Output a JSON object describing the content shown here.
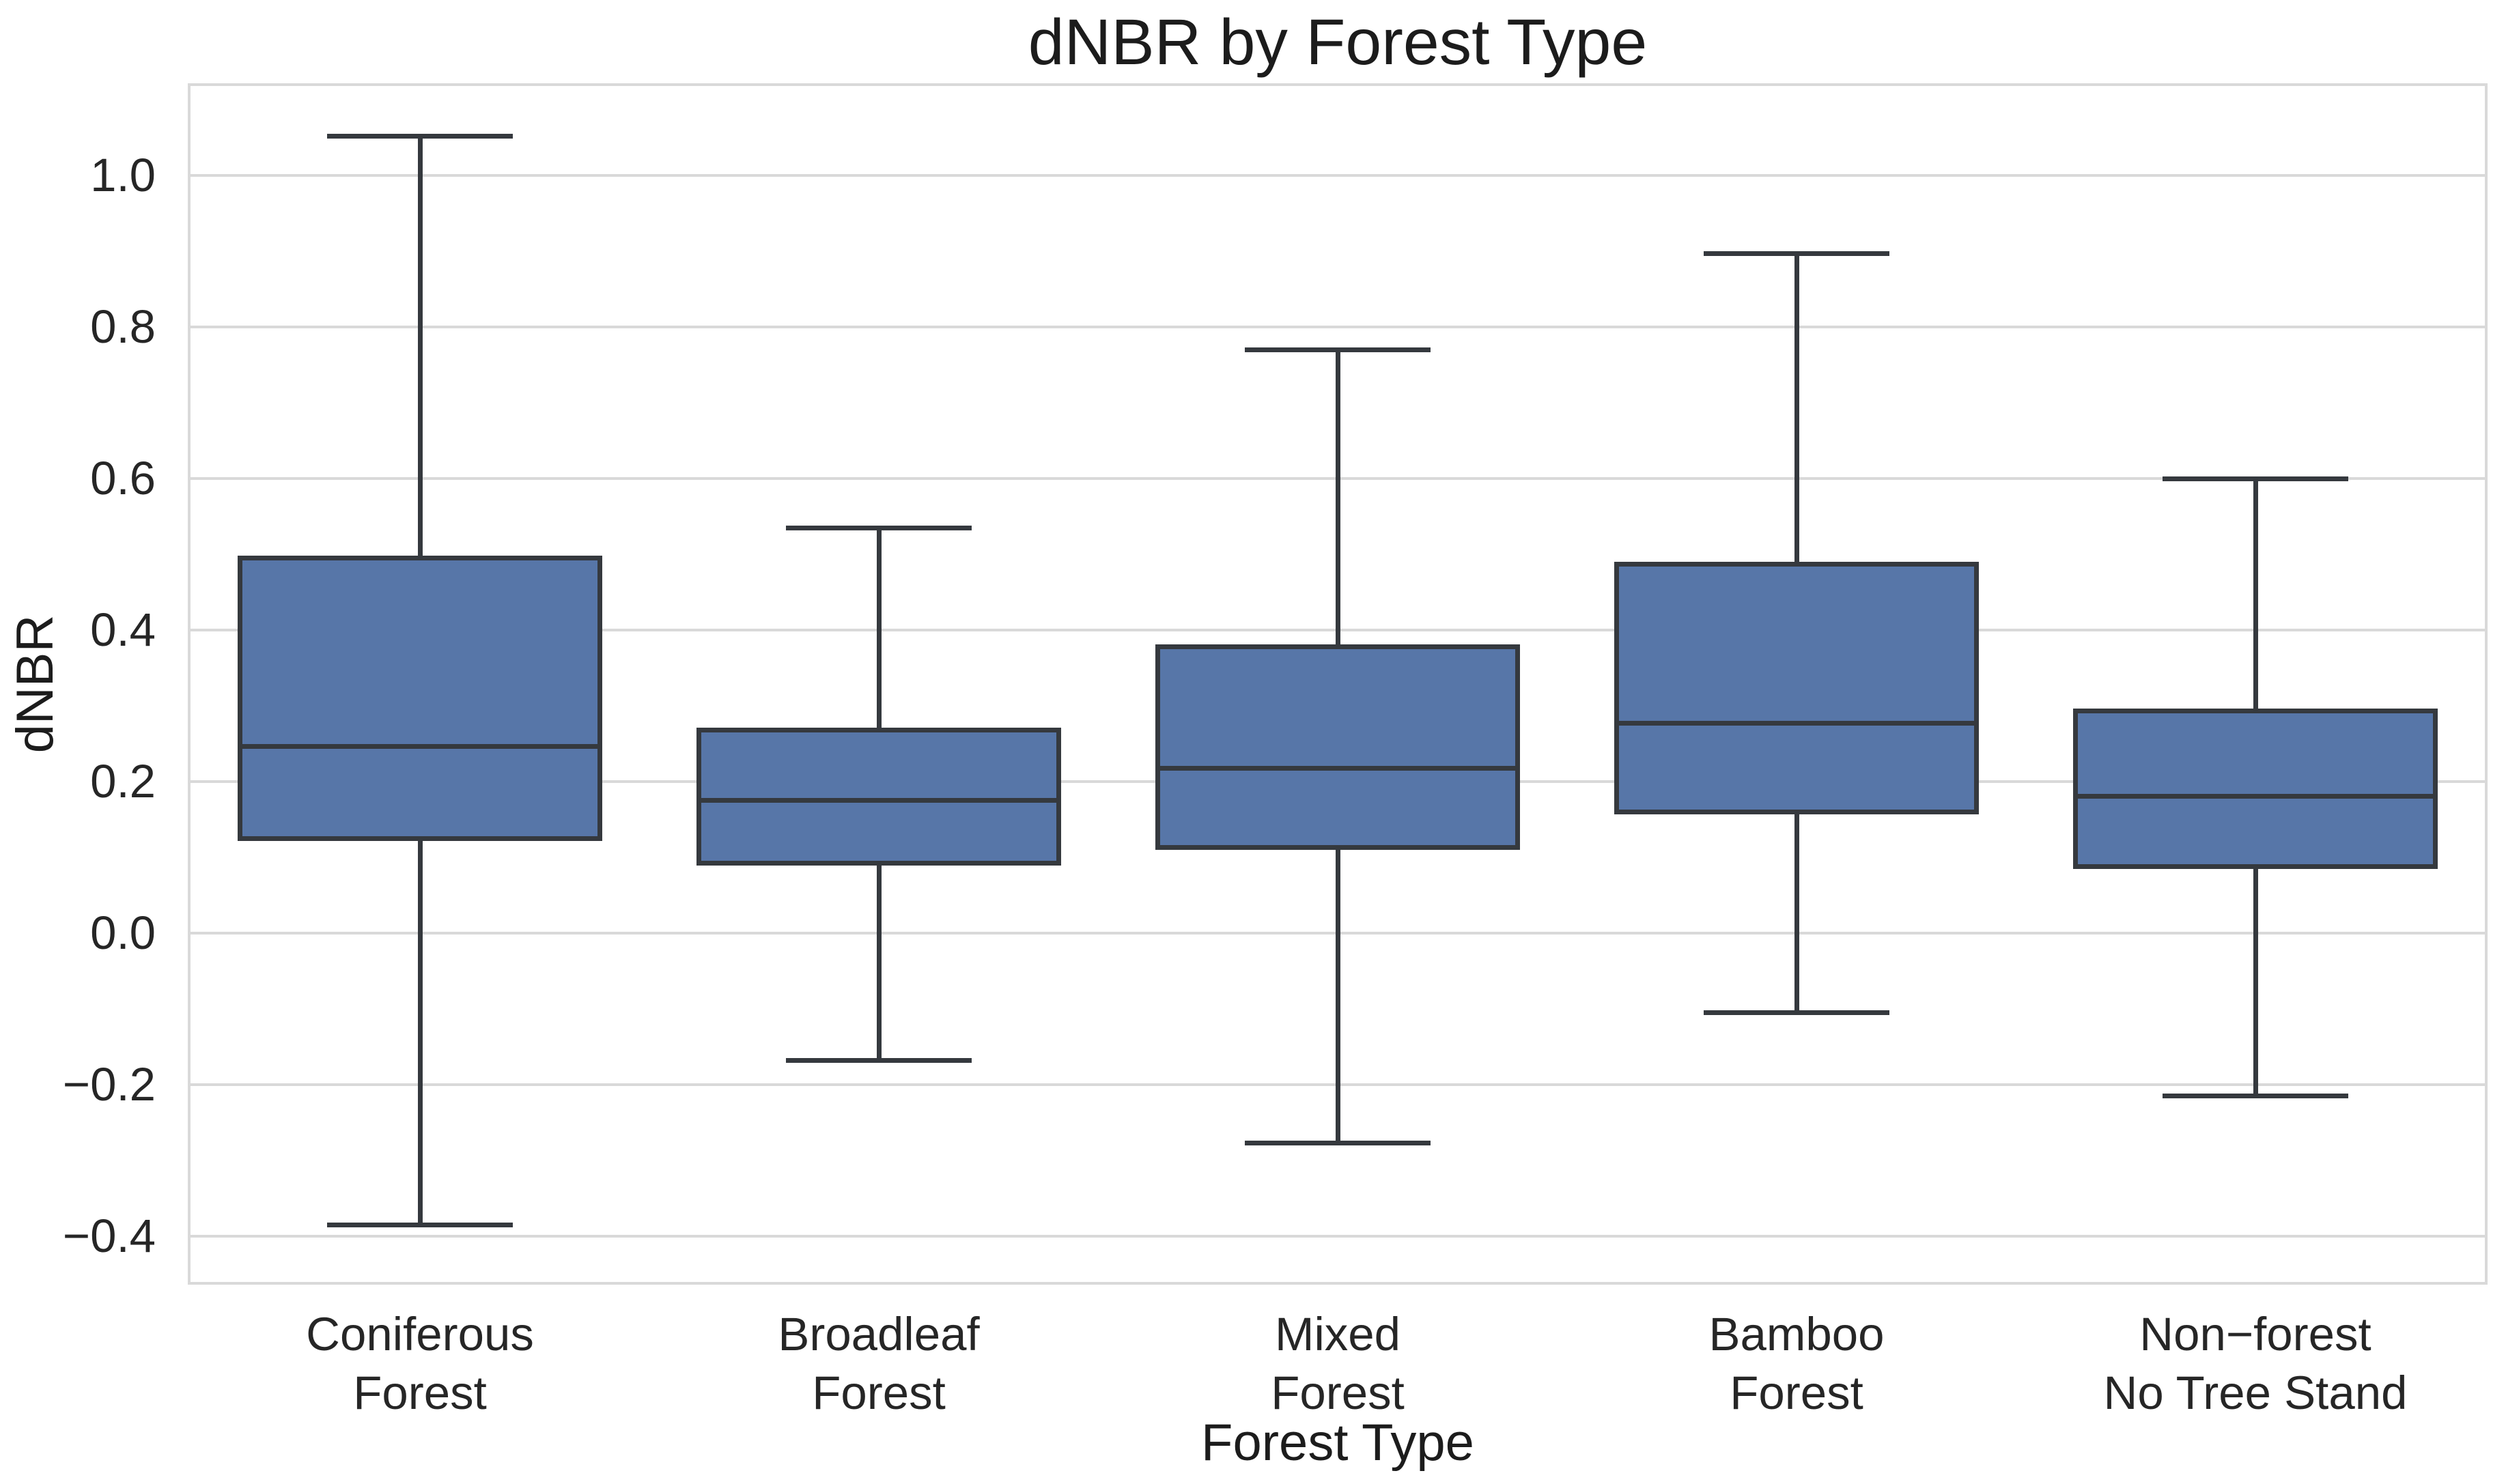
{
  "chart_data": {
    "type": "box",
    "title": "dNBR by Forest Type",
    "xlabel": "Forest Type",
    "ylabel": "dNBR",
    "categories": [
      "Coniferous\nForest",
      "Broadleaf\nForest",
      "Mixed\nForest",
      "Bamboo\nForest",
      "Non−forest\nNo Tree Stand"
    ],
    "series": [
      {
        "name": "Coniferous Forest",
        "whisker_low": -0.385,
        "q1": 0.125,
        "median": 0.247,
        "q3": 0.495,
        "whisker_high": 1.052
      },
      {
        "name": "Broadleaf Forest",
        "whisker_low": -0.168,
        "q1": 0.093,
        "median": 0.175,
        "q3": 0.268,
        "whisker_high": 0.535
      },
      {
        "name": "Mixed Forest",
        "whisker_low": -0.277,
        "q1": 0.113,
        "median": 0.218,
        "q3": 0.378,
        "whisker_high": 0.77
      },
      {
        "name": "Bamboo Forest",
        "whisker_low": -0.105,
        "q1": 0.16,
        "median": 0.277,
        "q3": 0.487,
        "whisker_high": 0.897
      },
      {
        "name": "Non-forest No Tree Stand",
        "whisker_low": -0.215,
        "q1": 0.088,
        "median": 0.181,
        "q3": 0.293,
        "whisker_high": 0.6
      }
    ],
    "yticks": [
      1.0,
      0.8,
      0.6,
      0.4,
      0.2,
      0.0,
      -0.2,
      -0.4
    ],
    "ytick_labels": [
      "1.0",
      "0.8",
      "0.6",
      "0.4",
      "0.2",
      "0.0",
      "−0.2",
      "−0.4"
    ],
    "ylim": [
      -0.46,
      1.118
    ],
    "grid": true,
    "legend": "none",
    "colors": {
      "box_fill": "#5776a8",
      "line": "#35393e",
      "grid": "#d9d9d9",
      "text": "#262626",
      "background": "#ffffff"
    }
  }
}
